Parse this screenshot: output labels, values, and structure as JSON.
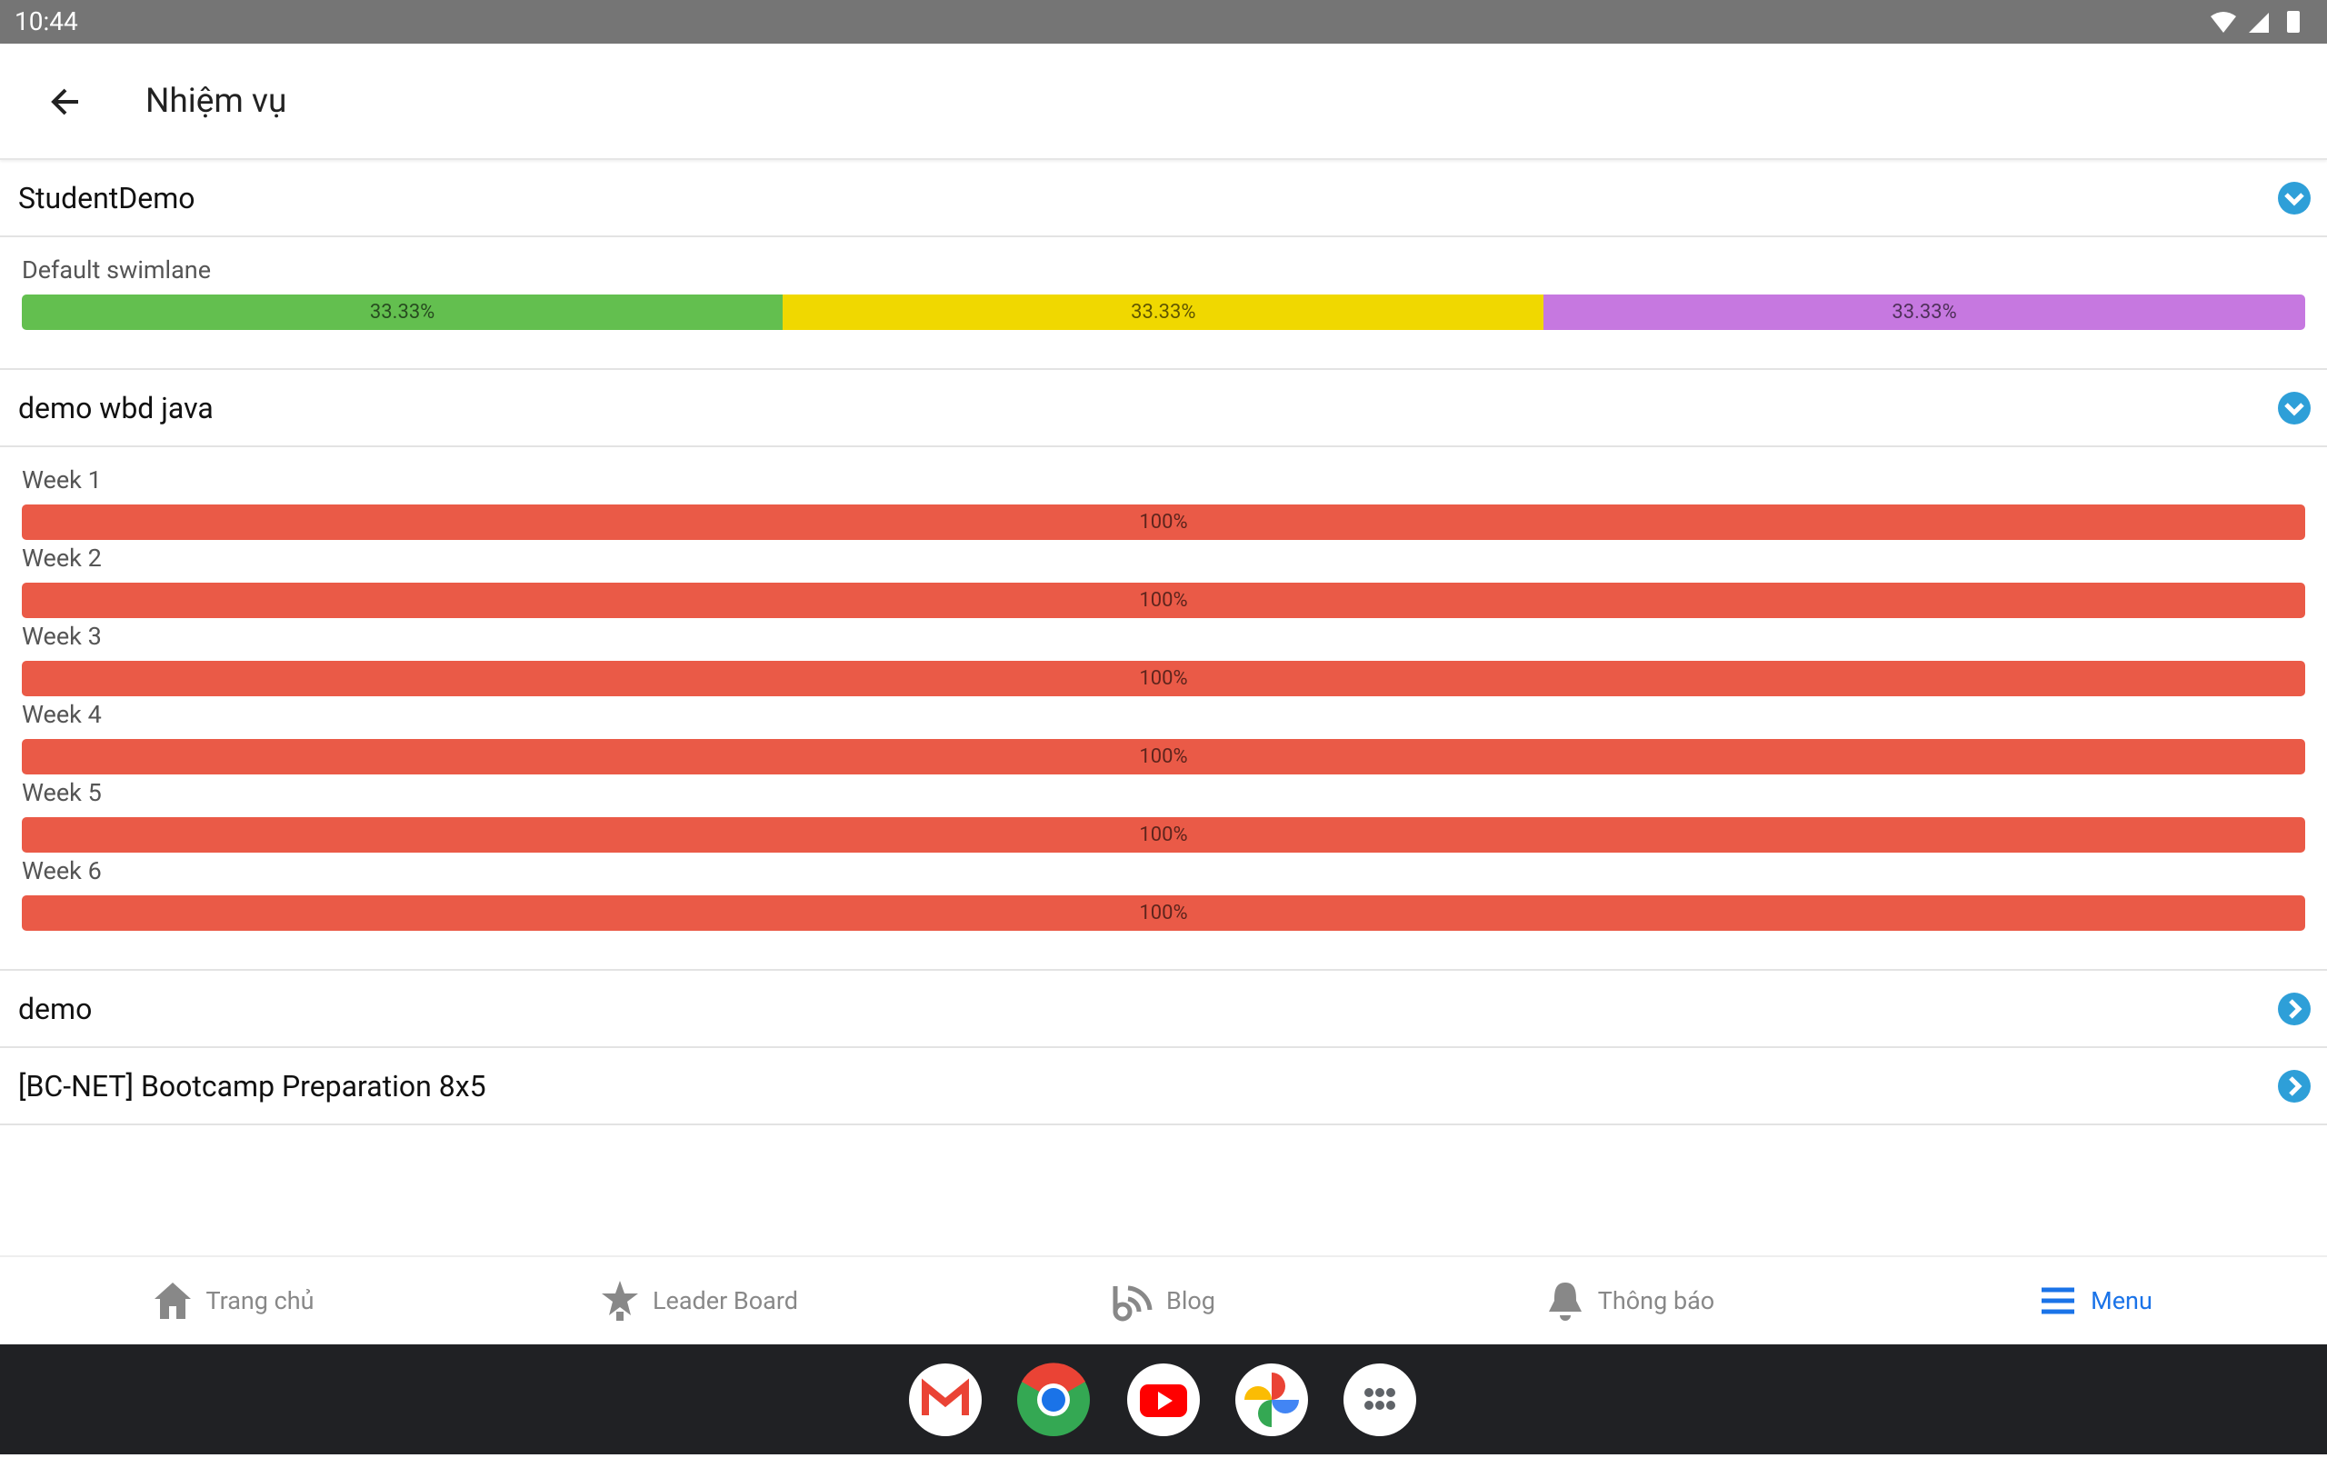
{
  "status_bar": {
    "time": "10:44"
  },
  "app_bar": {
    "title": "Nhiệm vụ"
  },
  "projects": [
    {
      "name": "StudentDemo",
      "expanded": true,
      "swimlanes": [
        {
          "name": "Default swimlane",
          "segments": [
            {
              "value": 33.33,
              "label": "33.33%",
              "color": "#63bf4f"
            },
            {
              "value": 33.33,
              "label": "33.33%",
              "color": "#f0d800"
            },
            {
              "value": 33.33,
              "label": "33.33%",
              "color": "#c678e0"
            }
          ]
        }
      ]
    },
    {
      "name": "demo wbd java",
      "expanded": true,
      "swimlanes": [
        {
          "name": "Week 1",
          "segments": [
            {
              "value": 100,
              "label": "100%",
              "color": "#ea5a47"
            }
          ]
        },
        {
          "name": "Week 2",
          "segments": [
            {
              "value": 100,
              "label": "100%",
              "color": "#ea5a47"
            }
          ]
        },
        {
          "name": "Week 3",
          "segments": [
            {
              "value": 100,
              "label": "100%",
              "color": "#ea5a47"
            }
          ]
        },
        {
          "name": "Week 4",
          "segments": [
            {
              "value": 100,
              "label": "100%",
              "color": "#ea5a47"
            }
          ]
        },
        {
          "name": "Week 5",
          "segments": [
            {
              "value": 100,
              "label": "100%",
              "color": "#ea5a47"
            }
          ]
        },
        {
          "name": "Week 6",
          "segments": [
            {
              "value": 100,
              "label": "100%",
              "color": "#ea5a47"
            }
          ]
        }
      ]
    },
    {
      "name": "demo",
      "expanded": false,
      "swimlanes": []
    },
    {
      "name": "[BC-NET] Bootcamp Preparation 8x5",
      "expanded": false,
      "swimlanes": []
    }
  ],
  "bottom_nav": [
    {
      "label": "Trang chủ",
      "active": false
    },
    {
      "label": "Leader Board",
      "active": false
    },
    {
      "label": "Blog",
      "active": false
    },
    {
      "label": "Thông báo",
      "active": false
    },
    {
      "label": "Menu",
      "active": true
    }
  ]
}
